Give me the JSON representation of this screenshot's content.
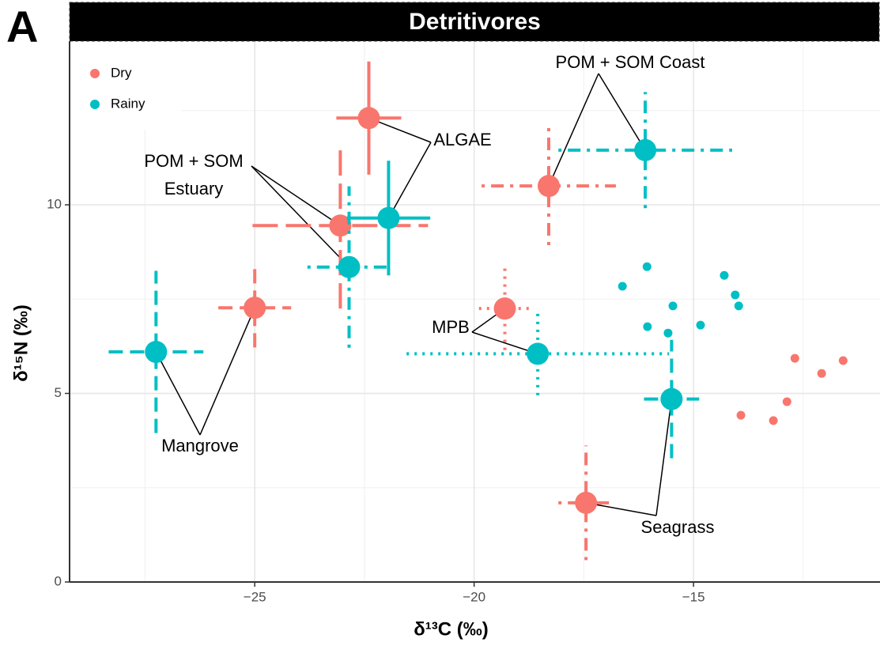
{
  "chart_data": {
    "type": "scatter",
    "panel_label": "A",
    "title": "Detritivores",
    "xlabel": "δ¹³C (‰)",
    "ylabel": "δ¹⁵N (‰)",
    "xlim": [
      -29.22,
      -10.75
    ],
    "ylim": [
      0,
      14.34
    ],
    "xticks": [
      {
        "value": -25,
        "label": "−25"
      },
      {
        "value": -20,
        "label": "−20"
      },
      {
        "value": -15,
        "label": "−15"
      }
    ],
    "yticks": [
      0,
      5,
      10
    ],
    "grid": true,
    "minor_grid": true,
    "legend": "top-left",
    "annotations": [
      [
        "ALGAE"
      ],
      [
        "POM + SOM",
        "Estuary"
      ],
      [
        "POM + SOM Coast"
      ],
      [
        "Mangrove"
      ],
      [
        "MPB"
      ],
      [
        "Seagrass"
      ]
    ],
    "series": [
      {
        "name": "Dry",
        "color": "#F8766D",
        "x": [
          -22.4,
          -23.05,
          -18.3,
          -25.0,
          -19.3,
          -17.45
        ],
        "values": [
          12.3,
          9.45,
          10.5,
          7.27,
          7.25,
          2.1
        ],
        "xerr": [
          0.74,
          2.0,
          1.53,
          0.83,
          0.59,
          0.63
        ],
        "yerr": [
          1.5,
          2.2,
          1.57,
          1.05,
          1.1,
          1.52
        ],
        "linetypes": [
          "solid",
          "longdash",
          "dotdash",
          "dashed",
          "dotted",
          "dotdash"
        ],
        "consumer_x": [
          -13.92,
          -13.18,
          -12.87,
          -12.69,
          -12.08,
          -11.59
        ],
        "consumer_values": [
          4.42,
          4.28,
          4.78,
          5.93,
          5.53,
          5.87
        ]
      },
      {
        "name": "Rainy",
        "color": "#00BFC4",
        "x": [
          -21.95,
          -22.85,
          -16.1,
          -27.25,
          -18.55,
          -15.5
        ],
        "values": [
          9.65,
          8.35,
          11.45,
          6.1,
          6.05,
          4.85
        ],
        "xerr": [
          0.95,
          0.95,
          1.98,
          1.08,
          2.99,
          0.63
        ],
        "yerr": [
          1.52,
          2.14,
          1.54,
          2.15,
          1.1,
          1.57
        ],
        "linetypes": [
          "solid",
          "dotdash",
          "dotdash",
          "dashed",
          "dotted",
          "dashed"
        ],
        "consumer_x": [
          -16.62,
          -16.06,
          -15.47,
          -16.05,
          -15.58,
          -14.84,
          -14.3,
          -14.05,
          -13.97
        ],
        "consumer_values": [
          7.84,
          8.36,
          7.32,
          6.77,
          6.6,
          6.81,
          8.13,
          7.61,
          7.32
        ]
      }
    ]
  }
}
